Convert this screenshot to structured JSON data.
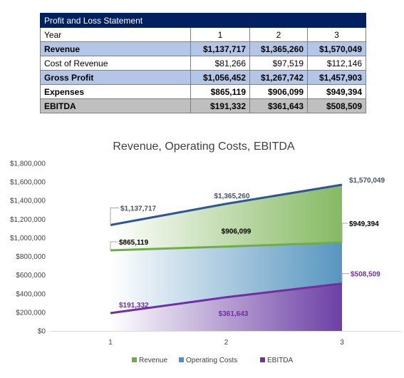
{
  "table": {
    "title": "Profit and Loss Statement",
    "header": {
      "label": "Year",
      "years": [
        "1",
        "2",
        "3"
      ]
    },
    "rows": [
      {
        "label": "Revenue",
        "values": [
          "$1,137,717",
          "$1,365,260",
          "$1,570,049"
        ]
      },
      {
        "label": "Cost of Revenue",
        "values": [
          "$81,266",
          "$97,519",
          "$112,146"
        ]
      },
      {
        "label": "Gross Profit",
        "values": [
          "$1,056,452",
          "$1,267,742",
          "$1,457,903"
        ]
      },
      {
        "label": "Expenses",
        "values": [
          "$865,119",
          "$906,099",
          "$949,394"
        ]
      },
      {
        "label": "EBITDA",
        "values": [
          "$191,332",
          "$361,643",
          "$508,509"
        ]
      }
    ]
  },
  "chart_data": {
    "type": "area",
    "title": "Revenue, Operating Costs, EBITDA",
    "x": [
      1,
      2,
      3
    ],
    "xticks": [
      "1",
      "2",
      "3"
    ],
    "ylim": [
      0,
      1800000
    ],
    "yticks": [
      "$0",
      "$200,000",
      "$400,000",
      "$600,000",
      "$800,000",
      "$1,000,000",
      "$1,200,000",
      "$1,400,000",
      "$1,600,000",
      "$1,800,000"
    ],
    "legend_position": "bottom",
    "grid": false,
    "series": [
      {
        "name": "Revenue",
        "values": [
          1137717,
          1365260,
          1570049
        ],
        "labels": [
          "$1,137,717",
          "$1,365,260",
          "$1,570,049"
        ],
        "line_color": "#2f5597",
        "fill_color": "#70ad47",
        "label_color": "#44546a"
      },
      {
        "name": "Operating Costs",
        "values": [
          865119,
          906099,
          949394
        ],
        "labels": [
          "$865,119",
          "$906,099",
          "$949,394"
        ],
        "line_color": "#70ad47",
        "fill_color": "#4f8fd0",
        "label_color": "#000000"
      },
      {
        "name": "EBITDA",
        "values": [
          191332,
          361643,
          508509
        ],
        "labels": [
          "$191,332",
          "$361,643",
          "$508,509"
        ],
        "line_color": "#7030a0",
        "fill_color": "#7030a0",
        "label_color": "#7030a0"
      }
    ]
  }
}
